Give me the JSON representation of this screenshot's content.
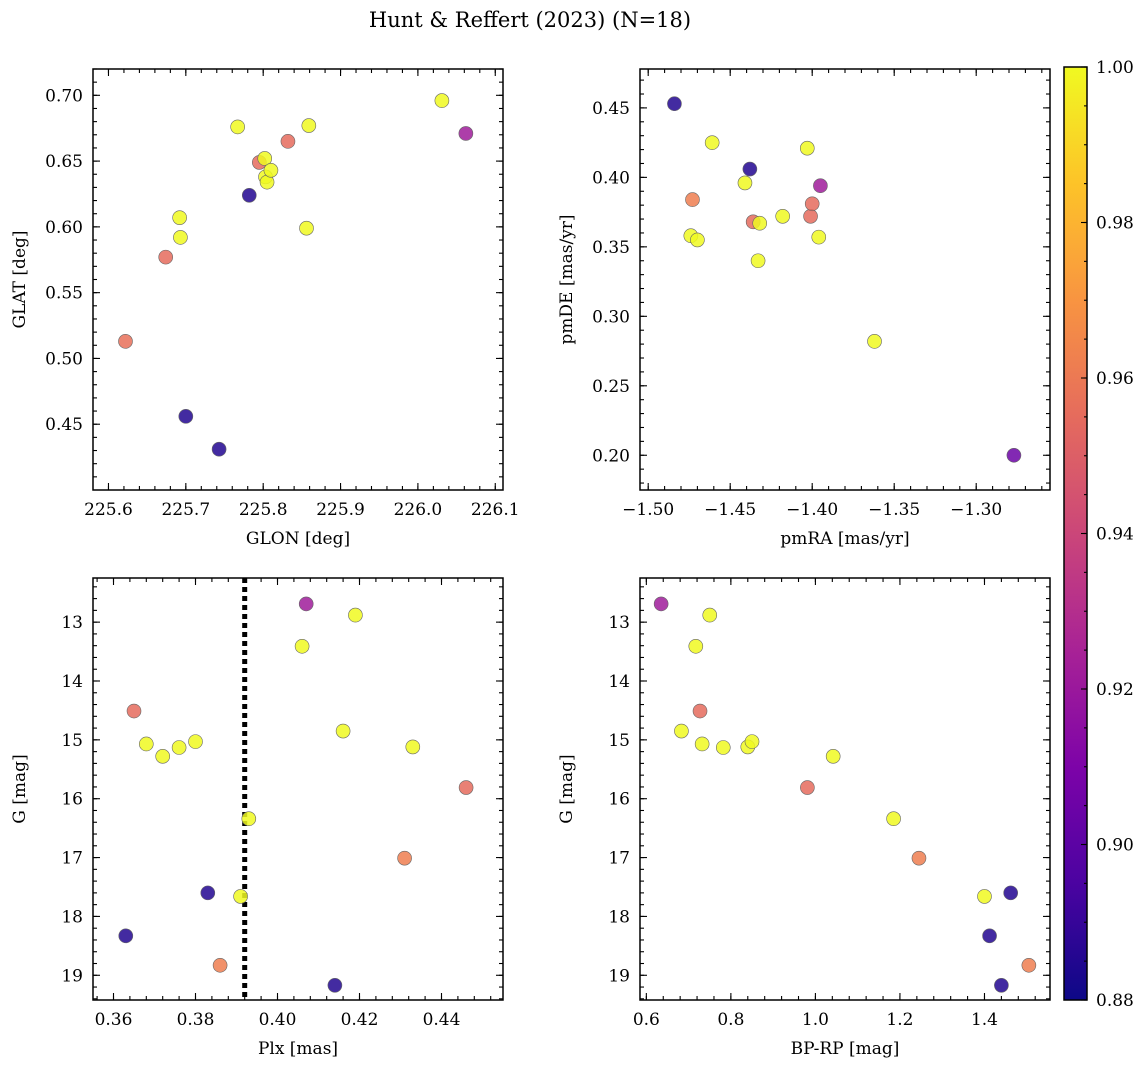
{
  "figure": {
    "title": "Hunt & Reffert (2023) (N=18)"
  },
  "colorbar": {
    "range": [
      0.88,
      1.0
    ],
    "ticks": [
      0.88,
      0.9,
      0.92,
      0.94,
      0.96,
      0.98,
      1.0
    ],
    "tick_labels": [
      "0.88",
      "0.90",
      "0.92",
      "0.94",
      "0.96",
      "0.98",
      "1.00"
    ],
    "colormap": "plasma"
  },
  "chart_data": [
    {
      "type": "scatter",
      "xlabel": "GLON [deg]",
      "ylabel": "GLAT [deg]",
      "xlim": [
        225.58,
        226.11
      ],
      "ylim": [
        0.4,
        0.72
      ],
      "xticks": [
        225.6,
        225.7,
        225.8,
        225.9,
        226.0,
        226.1
      ],
      "xtick_labels": [
        "225.6",
        "225.7",
        "225.8",
        "225.9",
        "226.0",
        "226.1"
      ],
      "yticks": [
        0.45,
        0.5,
        0.55,
        0.6,
        0.65,
        0.7
      ],
      "ytick_labels": [
        "0.45",
        "0.50",
        "0.55",
        "0.60",
        "0.65",
        "0.70"
      ],
      "x": [
        225.622,
        225.674,
        225.692,
        225.693,
        225.7,
        225.743,
        225.767,
        225.782,
        225.795,
        225.802,
        225.803,
        225.805,
        225.81,
        225.832,
        225.856,
        225.859,
        226.031,
        226.062
      ],
      "y": [
        0.513,
        0.577,
        0.607,
        0.592,
        0.456,
        0.431,
        0.676,
        0.624,
        0.649,
        0.652,
        0.638,
        0.634,
        0.643,
        0.665,
        0.599,
        0.677,
        0.696,
        0.671
      ],
      "c": [
        0.957,
        0.955,
        1.0,
        1.0,
        0.885,
        0.885,
        1.0,
        0.885,
        0.955,
        1.0,
        1.0,
        1.0,
        1.0,
        0.955,
        1.0,
        1.0,
        1.0,
        0.922
      ]
    },
    {
      "type": "scatter",
      "xlabel": "pmRA [mas/yr]",
      "ylabel": "pmDE [mas/yr]",
      "xlim": [
        -1.505,
        -1.255
      ],
      "ylim": [
        0.175,
        0.478
      ],
      "xticks": [
        -1.5,
        -1.45,
        -1.4,
        -1.35,
        -1.3
      ],
      "xtick_labels": [
        "−1.50",
        "−1.45",
        "−1.40",
        "−1.35",
        "−1.30"
      ],
      "yticks": [
        0.2,
        0.25,
        0.3,
        0.35,
        0.4,
        0.45
      ],
      "ytick_labels": [
        "0.20",
        "0.25",
        "0.30",
        "0.35",
        "0.40",
        "0.45"
      ],
      "x": [
        -1.484,
        -1.461,
        -1.473,
        -1.474,
        -1.47,
        -1.441,
        -1.438,
        -1.436,
        -1.432,
        -1.433,
        -1.418,
        -1.403,
        -1.401,
        -1.4,
        -1.396,
        -1.395,
        -1.362,
        -1.277
      ],
      "y": [
        0.453,
        0.425,
        0.384,
        0.358,
        0.355,
        0.396,
        0.406,
        0.368,
        0.367,
        0.34,
        0.372,
        0.421,
        0.372,
        0.381,
        0.357,
        0.394,
        0.282,
        0.2
      ],
      "c": [
        0.885,
        1.0,
        0.962,
        1.0,
        1.0,
        1.0,
        0.885,
        0.955,
        1.0,
        1.0,
        1.0,
        1.0,
        0.955,
        0.955,
        1.0,
        0.922,
        1.0,
        0.905
      ]
    },
    {
      "type": "scatter",
      "xlabel": "Plx [mas]",
      "ylabel": "G [mag]",
      "xlim": [
        0.355,
        0.455
      ],
      "ylim": [
        19.42,
        12.25
      ],
      "y_inverted": true,
      "xticks": [
        0.36,
        0.38,
        0.4,
        0.42,
        0.44
      ],
      "xtick_labels": [
        "0.36",
        "0.38",
        "0.40",
        "0.42",
        "0.44"
      ],
      "yticks": [
        13,
        14,
        15,
        16,
        17,
        18,
        19
      ],
      "ytick_labels": [
        "13",
        "14",
        "15",
        "16",
        "17",
        "18",
        "19"
      ],
      "vline": {
        "x": 0.392,
        "style": "dotted"
      },
      "x": [
        0.363,
        0.365,
        0.368,
        0.372,
        0.376,
        0.38,
        0.383,
        0.386,
        0.391,
        0.393,
        0.406,
        0.407,
        0.414,
        0.416,
        0.419,
        0.431,
        0.433,
        0.446
      ],
      "y": [
        18.33,
        14.51,
        15.07,
        15.28,
        15.13,
        15.03,
        17.6,
        18.83,
        17.66,
        16.34,
        13.41,
        12.69,
        19.17,
        14.85,
        12.88,
        17.01,
        15.12,
        15.81
      ],
      "c": [
        0.885,
        0.955,
        1.0,
        1.0,
        1.0,
        1.0,
        0.885,
        0.962,
        1.0,
        1.0,
        1.0,
        0.922,
        0.885,
        1.0,
        1.0,
        0.962,
        1.0,
        0.955
      ]
    },
    {
      "type": "scatter",
      "xlabel": "BP-RP [mag]",
      "ylabel": "G [mag]",
      "xlim": [
        0.585,
        1.555
      ],
      "ylim": [
        19.42,
        12.25
      ],
      "y_inverted": true,
      "xticks": [
        0.6,
        0.8,
        1.0,
        1.2,
        1.4
      ],
      "xtick_labels": [
        "0.6",
        "0.8",
        "1.0",
        "1.2",
        "1.4"
      ],
      "yticks": [
        13,
        14,
        15,
        16,
        17,
        18,
        19
      ],
      "ytick_labels": [
        "13",
        "14",
        "15",
        "16",
        "17",
        "18",
        "19"
      ],
      "x": [
        0.635,
        0.683,
        0.717,
        0.727,
        0.732,
        0.75,
        0.782,
        0.84,
        0.85,
        0.981,
        1.042,
        1.185,
        1.245,
        1.4,
        1.412,
        1.44,
        1.462,
        1.505
      ],
      "y": [
        12.69,
        14.85,
        13.41,
        14.51,
        15.07,
        12.88,
        15.13,
        15.12,
        15.03,
        15.81,
        15.28,
        16.34,
        17.01,
        17.66,
        18.33,
        19.17,
        17.6,
        18.83
      ],
      "c": [
        0.922,
        1.0,
        1.0,
        0.955,
        1.0,
        1.0,
        1.0,
        1.0,
        1.0,
        0.955,
        1.0,
        1.0,
        0.962,
        1.0,
        0.885,
        0.885,
        0.885,
        0.962
      ]
    }
  ]
}
